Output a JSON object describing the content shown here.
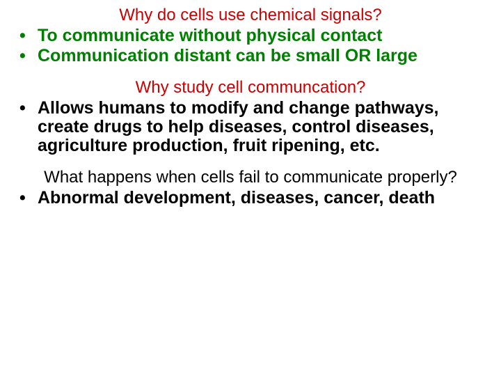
{
  "colors": {
    "question_red": "#cc0000",
    "bullet_green": "#008000",
    "text_black": "#000000",
    "background": "#ffffff"
  },
  "typography": {
    "question_fontsize": 24,
    "question_fontweight": "normal",
    "bullet_fontsize": 25,
    "bullet_fontweight": "bold",
    "font_family": "Arial"
  },
  "sections": [
    {
      "question": "Why do cells use chemical signals?",
      "question_color": "#cc0000",
      "bullets": [
        {
          "text": "To communicate without physical contact",
          "color": "#008000"
        },
        {
          "text": "Communication distant can be small OR large",
          "color": "#008000"
        }
      ]
    },
    {
      "question": "Why study cell communcation?",
      "question_color": "#cc0000",
      "bullets": [
        {
          "text": "Allows humans to modify and change pathways, create drugs to help diseases, control diseases, agriculture production, fruit ripening,  etc.",
          "color": "#000000"
        }
      ]
    },
    {
      "question": "What happens when cells fail to communicate properly?",
      "question_color": "#000000",
      "bullets": [
        {
          "text": "Abnormal development, diseases, cancer, death",
          "color": "#000000"
        }
      ]
    }
  ]
}
